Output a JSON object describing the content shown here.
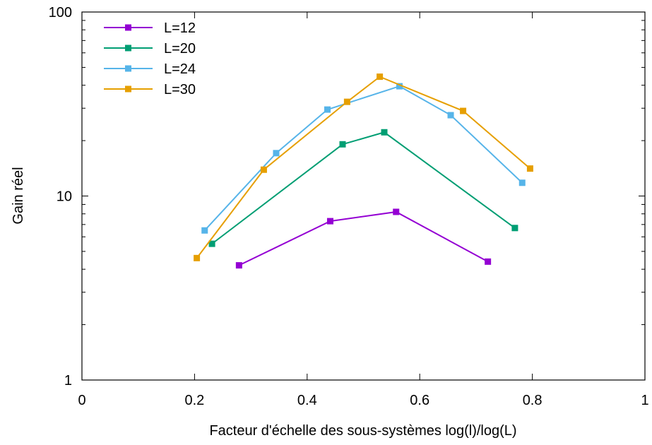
{
  "chart_data": {
    "type": "line",
    "title": "",
    "xlabel": "Facteur d'échelle des sous-systèmes log(l)/log(L)",
    "ylabel": "Gain réel",
    "xlim": [
      0,
      1
    ],
    "ylim": [
      1,
      100
    ],
    "yscale": "log",
    "x_ticks": [
      0,
      0.2,
      0.4,
      0.6,
      0.8,
      1
    ],
    "x_tick_labels": [
      "0",
      "0.2",
      "0.4",
      "0.6",
      "0.8",
      "1"
    ],
    "y_ticks": [
      1,
      10,
      100
    ],
    "y_tick_labels": [
      "1",
      "10",
      "100"
    ],
    "grid": false,
    "legend_position": "top-left",
    "series": [
      {
        "name": "L=12",
        "color": "#9400d3",
        "x": [
          0.279,
          0.441,
          0.558,
          0.721
        ],
        "y": [
          4.2,
          7.3,
          8.2,
          4.4
        ]
      },
      {
        "name": "L=20",
        "color": "#009e73",
        "x": [
          0.231,
          0.463,
          0.537,
          0.769
        ],
        "y": [
          5.5,
          19.1,
          22.2,
          6.7
        ]
      },
      {
        "name": "L=24",
        "color": "#56b4e9",
        "x": [
          0.218,
          0.345,
          0.436,
          0.564,
          0.655,
          0.782
        ],
        "y": [
          6.5,
          17.1,
          29.5,
          39.5,
          27.5,
          11.8
        ]
      },
      {
        "name": "L=30",
        "color": "#e69f00",
        "x": [
          0.204,
          0.323,
          0.471,
          0.529,
          0.677,
          0.796
        ],
        "y": [
          4.6,
          13.9,
          32.5,
          44.5,
          29.0,
          14.1
        ]
      }
    ]
  }
}
